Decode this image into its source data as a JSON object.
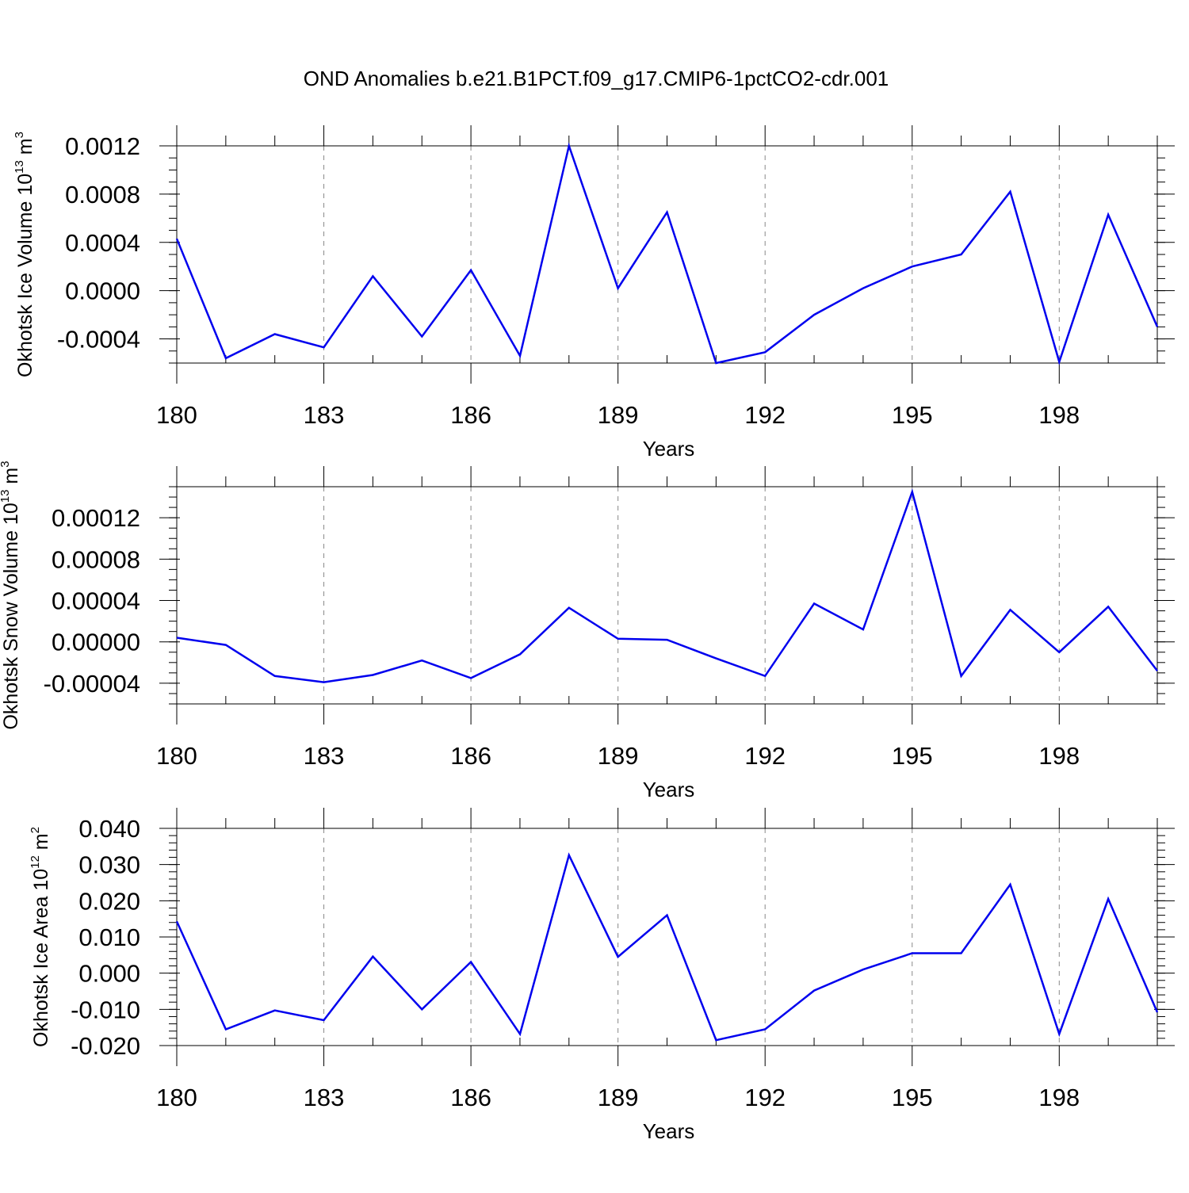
{
  "title": "OND Anomalies b.e21.B1PCT.f09_g17.CMIP6-1pctCO2-cdr.001",
  "colors": {
    "line": "#0000ee",
    "axis": "#000000",
    "grid": "#888888"
  },
  "chart_data": [
    {
      "type": "line",
      "title": "OND Anomalies b.e21.B1PCT.f09_g17.CMIP6-1pctCO2-cdr.001",
      "xlabel": "Years",
      "ylabel": {
        "text": "Okhotsk Ice Volume 10",
        "sup": "13",
        "unit": " m",
        "unit_sup": "3"
      },
      "xlim": [
        180,
        200
      ],
      "ylim": [
        -0.0006,
        0.0012
      ],
      "x_ticks": [
        180,
        183,
        186,
        189,
        192,
        195,
        198
      ],
      "x_tick_labels": [
        "180",
        "183",
        "186",
        "189",
        "192",
        "195",
        "198"
      ],
      "y_ticks": [
        -0.0004,
        0.0,
        0.0004,
        0.0008,
        0.0012
      ],
      "y_tick_labels": [
        "-0.0004",
        "0.0000",
        "0.0004",
        "0.0008",
        "0.0012"
      ],
      "y_minor_step": 0.0001,
      "grid": "vertical dashed",
      "x": [
        180,
        181,
        182,
        183,
        184,
        185,
        186,
        187,
        188,
        189,
        190,
        191,
        192,
        193,
        194,
        195,
        196,
        197,
        198,
        199,
        200
      ],
      "series": [
        {
          "name": "Okhotsk Ice Volume",
          "values": [
            0.00043,
            -0.00056,
            -0.00036,
            -0.00047,
            0.00012,
            -0.00038,
            0.00017,
            -0.00054,
            0.0012,
            2e-05,
            0.00065,
            -0.0006,
            -0.00051,
            -0.0002,
            2e-05,
            0.0002,
            0.0003,
            0.00082,
            -0.00059,
            0.00063,
            -0.0003
          ]
        }
      ]
    },
    {
      "type": "line",
      "xlabel": "Years",
      "ylabel": {
        "text": "Okhotsk Snow Volume 10",
        "sup": "13",
        "unit": " m",
        "unit_sup": "3"
      },
      "xlim": [
        180,
        200
      ],
      "ylim": [
        -6e-05,
        0.00015
      ],
      "x_ticks": [
        180,
        183,
        186,
        189,
        192,
        195,
        198
      ],
      "x_tick_labels": [
        "180",
        "183",
        "186",
        "189",
        "192",
        "195",
        "198"
      ],
      "y_ticks": [
        -4e-05,
        0.0,
        4e-05,
        8e-05,
        0.00012
      ],
      "y_tick_labels": [
        "-0.00004",
        "0.00000",
        "0.00004",
        "0.00008",
        "0.00012"
      ],
      "y_minor_step": 1e-05,
      "grid": "vertical dashed",
      "x": [
        180,
        181,
        182,
        183,
        184,
        185,
        186,
        187,
        188,
        189,
        190,
        191,
        192,
        193,
        194,
        195,
        196,
        197,
        198,
        199,
        200
      ],
      "series": [
        {
          "name": "Okhotsk Snow Volume",
          "values": [
            4e-06,
            -3e-06,
            -3.3e-05,
            -3.9e-05,
            -3.2e-05,
            -1.8e-05,
            -3.5e-05,
            -1.2e-05,
            3.3e-05,
            3e-06,
            2e-06,
            -1.6e-05,
            -3.3e-05,
            3.7e-05,
            1.2e-05,
            0.000145,
            -3.3e-05,
            3.1e-05,
            -1e-05,
            3.4e-05,
            -2.8e-05
          ]
        }
      ]
    },
    {
      "type": "line",
      "xlabel": "Years",
      "ylabel": {
        "text": "Okhotsk Ice Area 10",
        "sup": "12",
        "unit": " m",
        "unit_sup": "2"
      },
      "xlim": [
        180,
        200
      ],
      "ylim": [
        -0.02,
        0.04
      ],
      "x_ticks": [
        180,
        183,
        186,
        189,
        192,
        195,
        198
      ],
      "x_tick_labels": [
        "180",
        "183",
        "186",
        "189",
        "192",
        "195",
        "198"
      ],
      "y_ticks": [
        -0.02,
        -0.01,
        0.0,
        0.01,
        0.02,
        0.03,
        0.04
      ],
      "y_tick_labels": [
        "-0.020",
        "-0.010",
        "0.000",
        "0.010",
        "0.020",
        "0.030",
        "0.040"
      ],
      "y_minor_step": 0.002,
      "grid": "vertical dashed",
      "x": [
        180,
        181,
        182,
        183,
        184,
        185,
        186,
        187,
        188,
        189,
        190,
        191,
        192,
        193,
        194,
        195,
        196,
        197,
        198,
        199,
        200
      ],
      "series": [
        {
          "name": "Okhotsk Ice Area",
          "values": [
            0.0143,
            -0.0155,
            -0.0103,
            -0.013,
            0.0046,
            -0.01,
            0.0031,
            -0.0168,
            0.0326,
            0.0045,
            0.016,
            -0.0185,
            -0.0155,
            -0.0048,
            0.001,
            0.0055,
            0.0055,
            0.0245,
            -0.0168,
            0.0205,
            -0.0108
          ]
        }
      ]
    }
  ]
}
